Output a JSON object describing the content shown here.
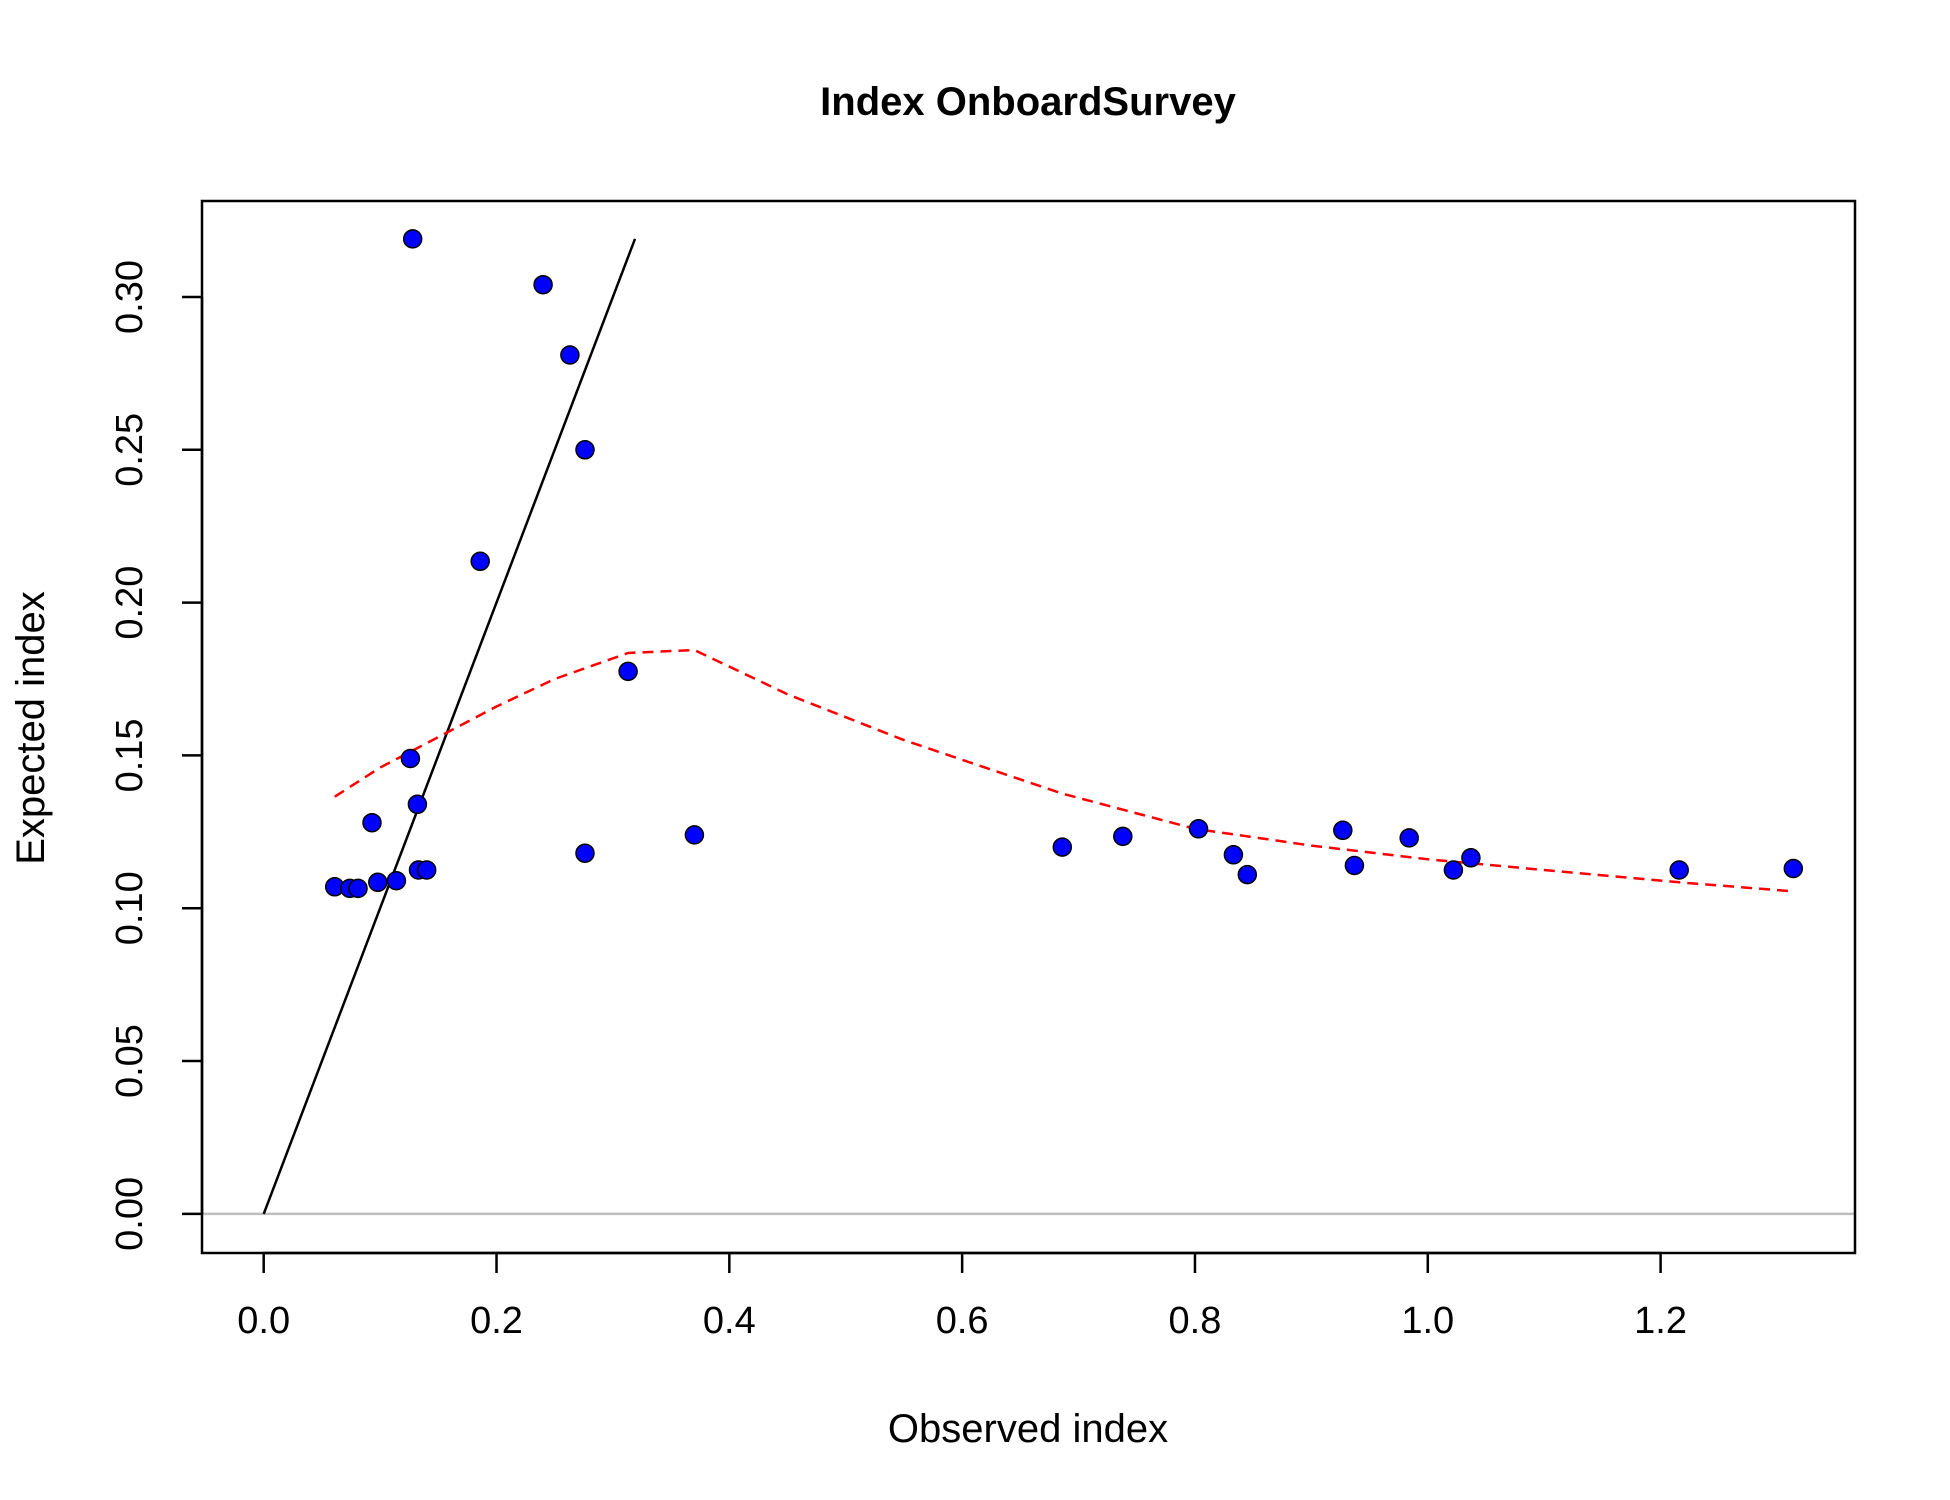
{
  "chart_data": {
    "type": "scatter",
    "title": "Index OnboardSurvey",
    "xlabel": "Observed index",
    "ylabel": "Expected index",
    "xlim": [
      -0.053,
      1.367
    ],
    "ylim": [
      -0.0128,
      0.3314
    ],
    "x_ticks": [
      0.0,
      0.2,
      0.4,
      0.6,
      0.8,
      1.0,
      1.2
    ],
    "x_tick_labels": [
      "0.0",
      "0.2",
      "0.4",
      "0.6",
      "0.8",
      "1.0",
      "1.2"
    ],
    "y_ticks": [
      0.0,
      0.05,
      0.1,
      0.15,
      0.2,
      0.25,
      0.3
    ],
    "y_tick_labels": [
      "0.00",
      "0.05",
      "0.10",
      "0.15",
      "0.20",
      "0.25",
      "0.30"
    ],
    "grid": false,
    "legend": "none",
    "series": [
      {
        "kind": "points",
        "color": "#0000ff",
        "points": [
          [
            0.061,
            0.107
          ],
          [
            0.074,
            0.1065
          ],
          [
            0.081,
            0.1065
          ],
          [
            0.093,
            0.128
          ],
          [
            0.098,
            0.1085
          ],
          [
            0.114,
            0.109
          ],
          [
            0.126,
            0.149
          ],
          [
            0.128,
            0.319
          ],
          [
            0.132,
            0.134
          ],
          [
            0.133,
            0.1125
          ],
          [
            0.14,
            0.1125
          ],
          [
            0.186,
            0.2135
          ],
          [
            0.24,
            0.304
          ],
          [
            0.263,
            0.281
          ],
          [
            0.276,
            0.25
          ],
          [
            0.276,
            0.118
          ],
          [
            0.313,
            0.1775
          ],
          [
            0.37,
            0.124
          ],
          [
            0.686,
            0.12
          ],
          [
            0.738,
            0.1235
          ],
          [
            0.803,
            0.126
          ],
          [
            0.833,
            0.1175
          ],
          [
            0.845,
            0.111
          ],
          [
            0.927,
            0.1255
          ],
          [
            0.937,
            0.114
          ],
          [
            0.984,
            0.123
          ],
          [
            1.022,
            0.1125
          ],
          [
            1.037,
            0.1165
          ],
          [
            1.216,
            0.1125
          ],
          [
            1.314,
            0.113
          ]
        ]
      },
      {
        "kind": "line",
        "color": "#000000",
        "style": "solid",
        "points": [
          [
            0.0,
            0.0
          ],
          [
            0.319,
            0.319
          ]
        ]
      },
      {
        "kind": "line",
        "color": "#ff0000",
        "style": "dashed",
        "points": [
          [
            0.061,
            0.1365
          ],
          [
            0.1,
            0.146
          ],
          [
            0.15,
            0.156
          ],
          [
            0.2,
            0.166
          ],
          [
            0.25,
            0.175
          ],
          [
            0.313,
            0.1835
          ],
          [
            0.37,
            0.1845
          ],
          [
            0.45,
            0.17
          ],
          [
            0.55,
            0.155
          ],
          [
            0.686,
            0.1375
          ],
          [
            0.8,
            0.126
          ],
          [
            0.9,
            0.1205
          ],
          [
            1.0,
            0.116
          ],
          [
            1.1,
            0.1125
          ],
          [
            1.216,
            0.1085
          ],
          [
            1.314,
            0.1055
          ]
        ]
      },
      {
        "kind": "hline",
        "color": "#bebebe",
        "y": 0.0
      }
    ]
  }
}
